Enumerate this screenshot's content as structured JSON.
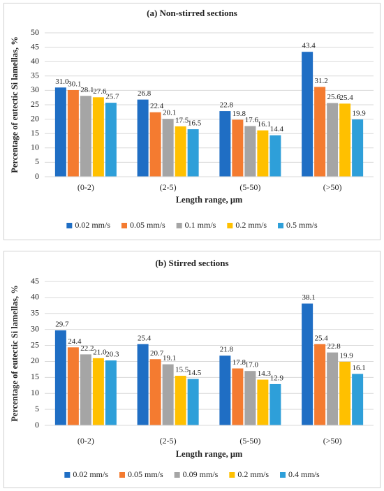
{
  "chart_data": [
    {
      "type": "bar",
      "title": "(a) Non-stirred sections",
      "x_label": "Length range, μm",
      "y_label": "Percentage of eutectic Si lamellas, %",
      "categories": [
        "(0-2)",
        "(2-5)",
        "(5-50)",
        "(>50)"
      ],
      "series": [
        {
          "name": "0.02 mm/s",
          "color": "#1f6ec4",
          "values": [
            31.0,
            26.8,
            22.8,
            43.4
          ],
          "value_labels": [
            "31.0",
            "26.8",
            "22.8",
            "43.4"
          ]
        },
        {
          "name": "0.05 mm/s",
          "color": "#f47b30",
          "values": [
            30.1,
            22.4,
            19.8,
            31.2
          ],
          "value_labels": [
            "30.1",
            "22.4",
            "19.8",
            "31.2"
          ]
        },
        {
          "name": "0.1 mm/s",
          "color": "#a5a5a5",
          "values": [
            28.1,
            20.1,
            17.6,
            25.6
          ],
          "value_labels": [
            "28.1",
            "20.1",
            "17.6",
            "25.6"
          ]
        },
        {
          "name": "0.2 mm/s",
          "color": "#ffc000",
          "values": [
            27.6,
            17.5,
            16.1,
            25.4
          ],
          "value_labels": [
            "27.6",
            "17.5",
            "16.1",
            "25.4"
          ]
        },
        {
          "name": "0.5 mm/s",
          "color": "#2e9fd9",
          "values": [
            25.7,
            16.5,
            14.4,
            19.9
          ],
          "value_labels": [
            "25.7",
            "16.5",
            "14.4",
            "19.9"
          ]
        }
      ],
      "ylim": [
        0,
        50
      ],
      "yticks": [
        0,
        5,
        10,
        15,
        20,
        25,
        30,
        35,
        40,
        45,
        50
      ],
      "grid": true,
      "legend": "bottom"
    },
    {
      "type": "bar",
      "title": "(b) Stirred sections",
      "x_label": "Length range, μm",
      "y_label": "Percentage of eutectic Si lamellas, %",
      "categories": [
        "(0-2)",
        "(2-5)",
        "(5-50)",
        "(>50)"
      ],
      "series": [
        {
          "name": "0.02 mm/s",
          "color": "#1f6ec4",
          "values": [
            29.7,
            25.4,
            21.8,
            38.1
          ],
          "value_labels": [
            "29.7",
            "25.4",
            "21.8",
            "38.1"
          ]
        },
        {
          "name": "0.05 mm/s",
          "color": "#f47b30",
          "values": [
            24.4,
            20.7,
            17.8,
            25.4
          ],
          "value_labels": [
            "24.4",
            "20.7",
            "17.8",
            "25.4"
          ]
        },
        {
          "name": "0.09 mm/s",
          "color": "#a5a5a5",
          "values": [
            22.2,
            19.1,
            17.0,
            22.8
          ],
          "value_labels": [
            "22.2",
            "19.1",
            "17.0",
            "22.8"
          ]
        },
        {
          "name": "0.2 mm/s",
          "color": "#ffc000",
          "values": [
            21.0,
            15.5,
            14.3,
            19.9
          ],
          "value_labels": [
            "21.0",
            "15.5",
            "14.3",
            "19.9"
          ]
        },
        {
          "name": "0.4 mm/s",
          "color": "#2e9fd9",
          "values": [
            20.3,
            14.5,
            12.9,
            16.1
          ],
          "value_labels": [
            "20.3",
            "14.5",
            "12.9",
            "16.1"
          ]
        }
      ],
      "ylim": [
        0,
        45
      ],
      "yticks": [
        0,
        5,
        10,
        15,
        20,
        25,
        30,
        35,
        40,
        45
      ],
      "grid": true,
      "legend": "bottom"
    }
  ]
}
